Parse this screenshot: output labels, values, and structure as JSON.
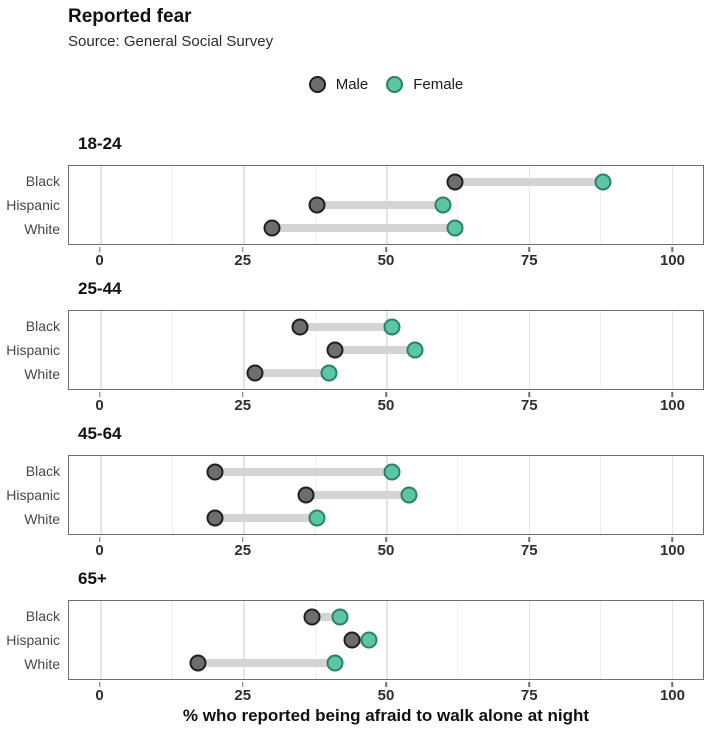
{
  "header": {
    "title": "Reported fear",
    "subtitle": "Source: General Social Survey"
  },
  "legend": {
    "items": [
      {
        "name": "male",
        "label": "Male",
        "fill": "#6d6d6d",
        "stroke": "#1f1f1f"
      },
      {
        "name": "female",
        "label": "Female",
        "fill": "#5cc6a4",
        "stroke": "#2b8068"
      }
    ]
  },
  "chart_data": {
    "type": "dumbbell-dot-plot",
    "title": "Reported fear",
    "subtitle": "Source: General Social Survey",
    "xlabel": "% who reported being afraid to walk alone at night",
    "x_ticks": [
      0,
      25,
      50,
      75,
      100
    ],
    "x_minor_ticks": [
      12.5,
      37.5,
      62.5,
      87.5
    ],
    "xlim": [
      -5.5,
      105.5
    ],
    "grid": "vertical",
    "legend_position": "top-center",
    "categories": [
      "Black",
      "Hispanic",
      "White"
    ],
    "series_names": [
      "Male",
      "Female"
    ],
    "facets": [
      {
        "label": "18-24",
        "rows": [
          {
            "category": "Black",
            "male": 62,
            "female": 88
          },
          {
            "category": "Hispanic",
            "male": 38,
            "female": 60
          },
          {
            "category": "White",
            "male": 30,
            "female": 62
          }
        ]
      },
      {
        "label": "25-44",
        "rows": [
          {
            "category": "Black",
            "male": 35,
            "female": 51
          },
          {
            "category": "Hispanic",
            "male": 41,
            "female": 55
          },
          {
            "category": "White",
            "male": 27,
            "female": 40
          }
        ]
      },
      {
        "label": "45-64",
        "rows": [
          {
            "category": "Black",
            "male": 20,
            "female": 51
          },
          {
            "category": "Hispanic",
            "male": 36,
            "female": 54
          },
          {
            "category": "White",
            "male": 20,
            "female": 38
          }
        ]
      },
      {
        "label": "65+",
        "rows": [
          {
            "category": "Black",
            "male": 37,
            "female": 42
          },
          {
            "category": "Hispanic",
            "male": 44,
            "female": 47
          },
          {
            "category": "White",
            "male": 17,
            "female": 41
          }
        ]
      }
    ],
    "colors": {
      "male_fill": "#6d6d6d",
      "male_stroke": "#1f1f1f",
      "female_fill": "#5cc6a4",
      "female_stroke": "#2b8068",
      "connector": "#d4d4d4",
      "panel_border": "#6e6e6e",
      "grid_major": "#e4e4e4",
      "grid_minor": "#efefef"
    }
  }
}
